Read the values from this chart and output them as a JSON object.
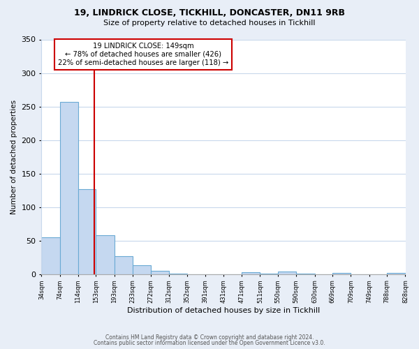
{
  "title1": "19, LINDRICK CLOSE, TICKHILL, DONCASTER, DN11 9RB",
  "title2": "Size of property relative to detached houses in Tickhill",
  "xlabel": "Distribution of detached houses by size in Tickhill",
  "ylabel": "Number of detached properties",
  "bin_labels": [
    "34sqm",
    "74sqm",
    "114sqm",
    "153sqm",
    "193sqm",
    "233sqm",
    "272sqm",
    "312sqm",
    "352sqm",
    "391sqm",
    "431sqm",
    "471sqm",
    "511sqm",
    "550sqm",
    "590sqm",
    "630sqm",
    "669sqm",
    "709sqm",
    "749sqm",
    "788sqm",
    "828sqm"
  ],
  "bin_edges": [
    34,
    74,
    114,
    153,
    193,
    233,
    272,
    312,
    352,
    391,
    431,
    471,
    511,
    550,
    590,
    630,
    669,
    709,
    749,
    788,
    828
  ],
  "bin_counts": [
    55,
    257,
    127,
    58,
    27,
    13,
    5,
    1,
    0,
    0,
    0,
    3,
    1,
    4,
    1,
    0,
    2,
    0,
    0,
    2
  ],
  "bar_color": "#c5d8f0",
  "bar_edge_color": "#6aaad4",
  "property_size": 149,
  "vline_color": "#cc0000",
  "annotation_title": "19 LINDRICK CLOSE: 149sqm",
  "annotation_line1": "← 78% of detached houses are smaller (426)",
  "annotation_line2": "22% of semi-detached houses are larger (118) →",
  "annotation_box_color": "#ffffff",
  "annotation_box_edge": "#cc0000",
  "ylim": [
    0,
    350
  ],
  "yticks": [
    0,
    50,
    100,
    150,
    200,
    250,
    300,
    350
  ],
  "footer1": "Contains HM Land Registry data © Crown copyright and database right 2024.",
  "footer2": "Contains public sector information licensed under the Open Government Licence v3.0.",
  "bg_color": "#e8eef7",
  "plot_bg_color": "#ffffff",
  "grid_color": "#c8d8ec"
}
